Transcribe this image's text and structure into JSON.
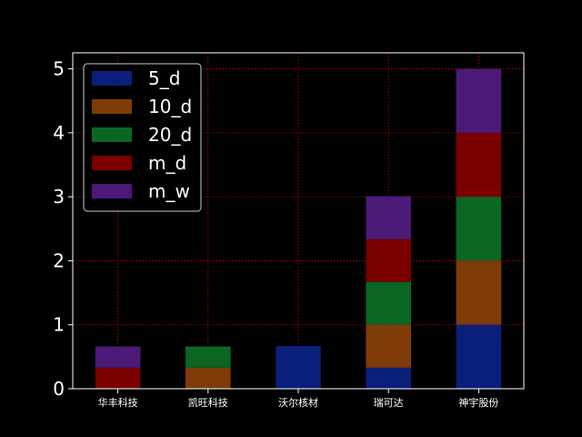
{
  "chart_data": {
    "type": "bar",
    "stacked": true,
    "categories": [
      "华丰科技",
      "凯旺科技",
      "沃尔核材",
      "瑞可达",
      "神宇股份"
    ],
    "series": [
      {
        "name": "5_d",
        "color": "#0a1f7a",
        "values": [
          0,
          0,
          0.67,
          0.33,
          1.0
        ]
      },
      {
        "name": "10_d",
        "color": "#7f3b08",
        "values": [
          0,
          0.33,
          0,
          0.67,
          1.0
        ]
      },
      {
        "name": "20_d",
        "color": "#0b6623",
        "values": [
          0,
          0.33,
          0,
          0.67,
          1.0
        ]
      },
      {
        "name": "m_d",
        "color": "#7a0000",
        "values": [
          0.33,
          0,
          0,
          0.67,
          1.0
        ]
      },
      {
        "name": "m_w",
        "color": "#4b1978",
        "values": [
          0.33,
          0,
          0,
          0.67,
          1.0
        ]
      }
    ],
    "yticks": [
      "0",
      "1",
      "2",
      "3",
      "4",
      "5"
    ],
    "ylim": [
      0,
      5.25
    ],
    "grid": true,
    "legend_position": "top-left",
    "background": "#000000",
    "axis_color": "#ffffff",
    "grid_color": "#cc0000"
  }
}
